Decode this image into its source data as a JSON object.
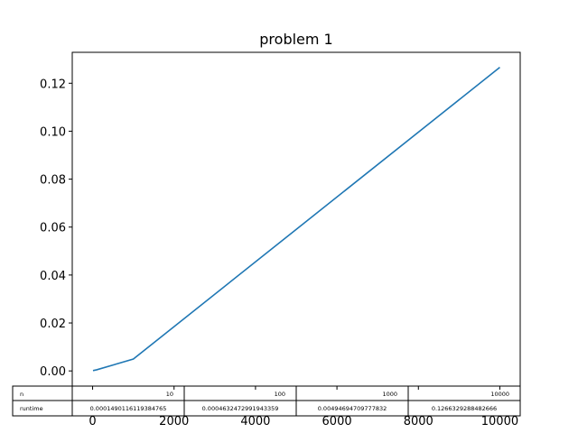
{
  "chart_data": {
    "type": "line",
    "title": "problem 1",
    "xlabel": "",
    "ylabel": "",
    "xlim": [
      -500,
      10500
    ],
    "ylim": [
      -0.00633,
      0.1329
    ],
    "x_ticks": [
      0,
      2000,
      4000,
      6000,
      8000,
      10000
    ],
    "y_ticks": [
      0.0,
      0.02,
      0.04,
      0.06,
      0.08,
      0.1,
      0.12
    ],
    "y_tick_labels": [
      "0.00",
      "0.02",
      "0.04",
      "0.06",
      "0.08",
      "0.10",
      "0.12"
    ],
    "grid": false,
    "series_color": "#1f77b4",
    "series": [
      {
        "name": "runtime",
        "x": [
          10,
          100,
          1000,
          10000
        ],
        "y": [
          0.0001490116119384765,
          0.0004632472991943359,
          0.00494694709777832,
          0.1266329288482666
        ]
      }
    ],
    "table": {
      "row_labels": [
        "n",
        "runtime"
      ],
      "rows": [
        [
          "10",
          "100",
          "1000",
          "10000"
        ],
        [
          "0.0001490116119384765",
          "0.0004632472991943359",
          "0.00494694709777832",
          "0.1266329288482666"
        ]
      ]
    }
  }
}
